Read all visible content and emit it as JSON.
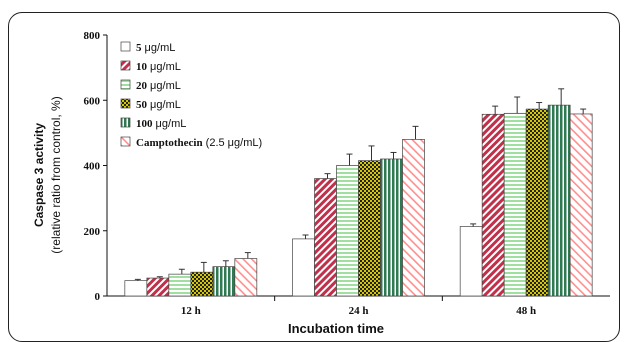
{
  "chart_data": {
    "type": "bar",
    "categories": [
      "12 h",
      "24 h",
      "48 h"
    ],
    "series": [
      {
        "name": "5",
        "unit": "μg/mL",
        "values": [
          47,
          175,
          213
        ],
        "errors": [
          4,
          12,
          8
        ],
        "color": "#ffffff",
        "pattern": "plain"
      },
      {
        "name": "10",
        "unit": "μg/mL",
        "values": [
          55,
          360,
          557
        ],
        "errors": [
          4,
          15,
          25
        ],
        "color": "#c0304a",
        "pattern": "diag"
      },
      {
        "name": "20",
        "unit": "μg/mL",
        "values": [
          67,
          400,
          560
        ],
        "errors": [
          15,
          35,
          50
        ],
        "color": "#9fe0a0",
        "pattern": "horiz"
      },
      {
        "name": "50",
        "unit": "μg/mL",
        "values": [
          73,
          415,
          573
        ],
        "errors": [
          30,
          45,
          20
        ],
        "color": "#d6c800",
        "pattern": "dots"
      },
      {
        "name": "100",
        "unit": "μg/mL",
        "values": [
          90,
          420,
          585
        ],
        "errors": [
          18,
          20,
          50
        ],
        "color": "#2f7a52",
        "pattern": "vert"
      },
      {
        "name": "Camptothecin",
        "unit": "(2.5 μg/mL)",
        "values": [
          115,
          480,
          558
        ],
        "errors": [
          18,
          40,
          15
        ],
        "color": "#ff8f8f",
        "pattern": "diag2"
      }
    ],
    "ylabel": "Caspase 3 activity",
    "ylabel2": "(relative ratio from control, %)",
    "xlabel": "Incubation time",
    "ylim": [
      0,
      800
    ],
    "yticks": [
      0,
      200,
      400,
      600,
      800
    ],
    "legend_position": "top-left",
    "grid": false
  }
}
